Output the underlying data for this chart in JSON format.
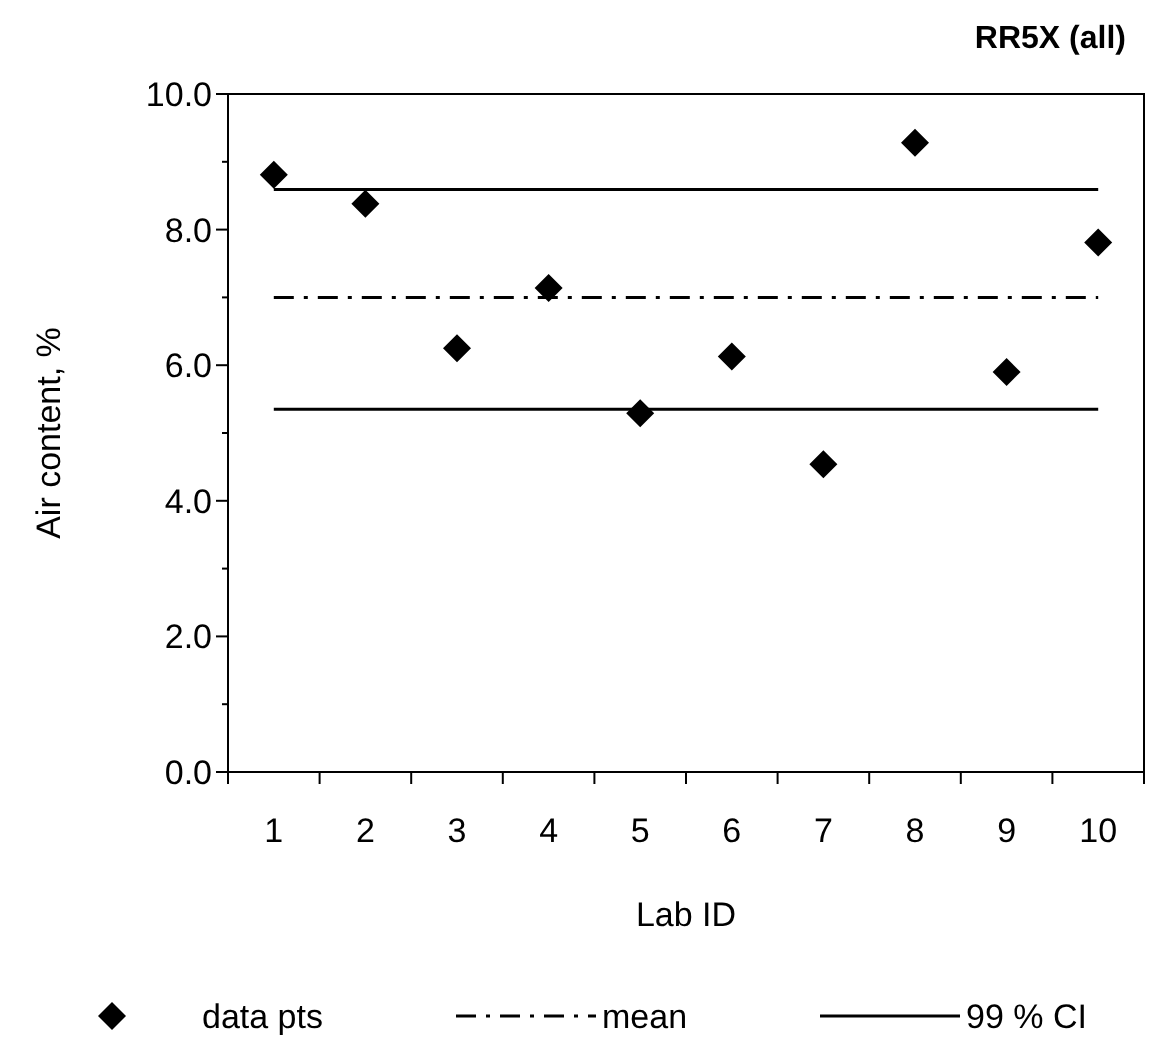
{
  "chart_data": {
    "type": "scatter",
    "title": "RR5X (all)",
    "xlabel": "Lab ID",
    "ylabel": "Air content, %",
    "categories": [
      "1",
      "2",
      "3",
      "4",
      "5",
      "6",
      "7",
      "8",
      "9",
      "10"
    ],
    "series": [
      {
        "name": "data pts",
        "marker": "diamond",
        "color": "#000000",
        "values": [
          8.81,
          8.38,
          6.25,
          7.14,
          5.29,
          6.13,
          4.54,
          9.28,
          5.9,
          7.81
        ]
      },
      {
        "name": "mean",
        "type": "line",
        "line_style": "dashdot",
        "marker": "none",
        "color": "#000000",
        "values": [
          7.0,
          7.0,
          7.0,
          7.0,
          7.0,
          7.0,
          7.0,
          7.0,
          7.0,
          7.0
        ]
      },
      {
        "name": "99 % CI",
        "type": "line",
        "line_style": "solid",
        "marker": "none",
        "color": "#000000",
        "values": [
          8.59,
          8.59,
          8.59,
          8.59,
          8.59,
          8.59,
          8.59,
          8.59,
          8.59,
          8.59
        ]
      },
      {
        "type": "line",
        "line_style": "solid",
        "marker": "none",
        "color": "#000000",
        "values": [
          5.35,
          5.35,
          5.35,
          5.35,
          5.35,
          5.35,
          5.35,
          5.35,
          5.35,
          5.35
        ]
      }
    ],
    "ylim": [
      0,
      10
    ],
    "yticks": [
      {
        "value": 0,
        "label": "0.0"
      },
      {
        "value": 2,
        "label": "2.0"
      },
      {
        "value": 4,
        "label": "4.0"
      },
      {
        "value": 6,
        "label": "6.0"
      },
      {
        "value": 8,
        "label": "8.0"
      },
      {
        "value": 10,
        "label": "10.0"
      }
    ],
    "grid": false,
    "legend": "bottom"
  }
}
